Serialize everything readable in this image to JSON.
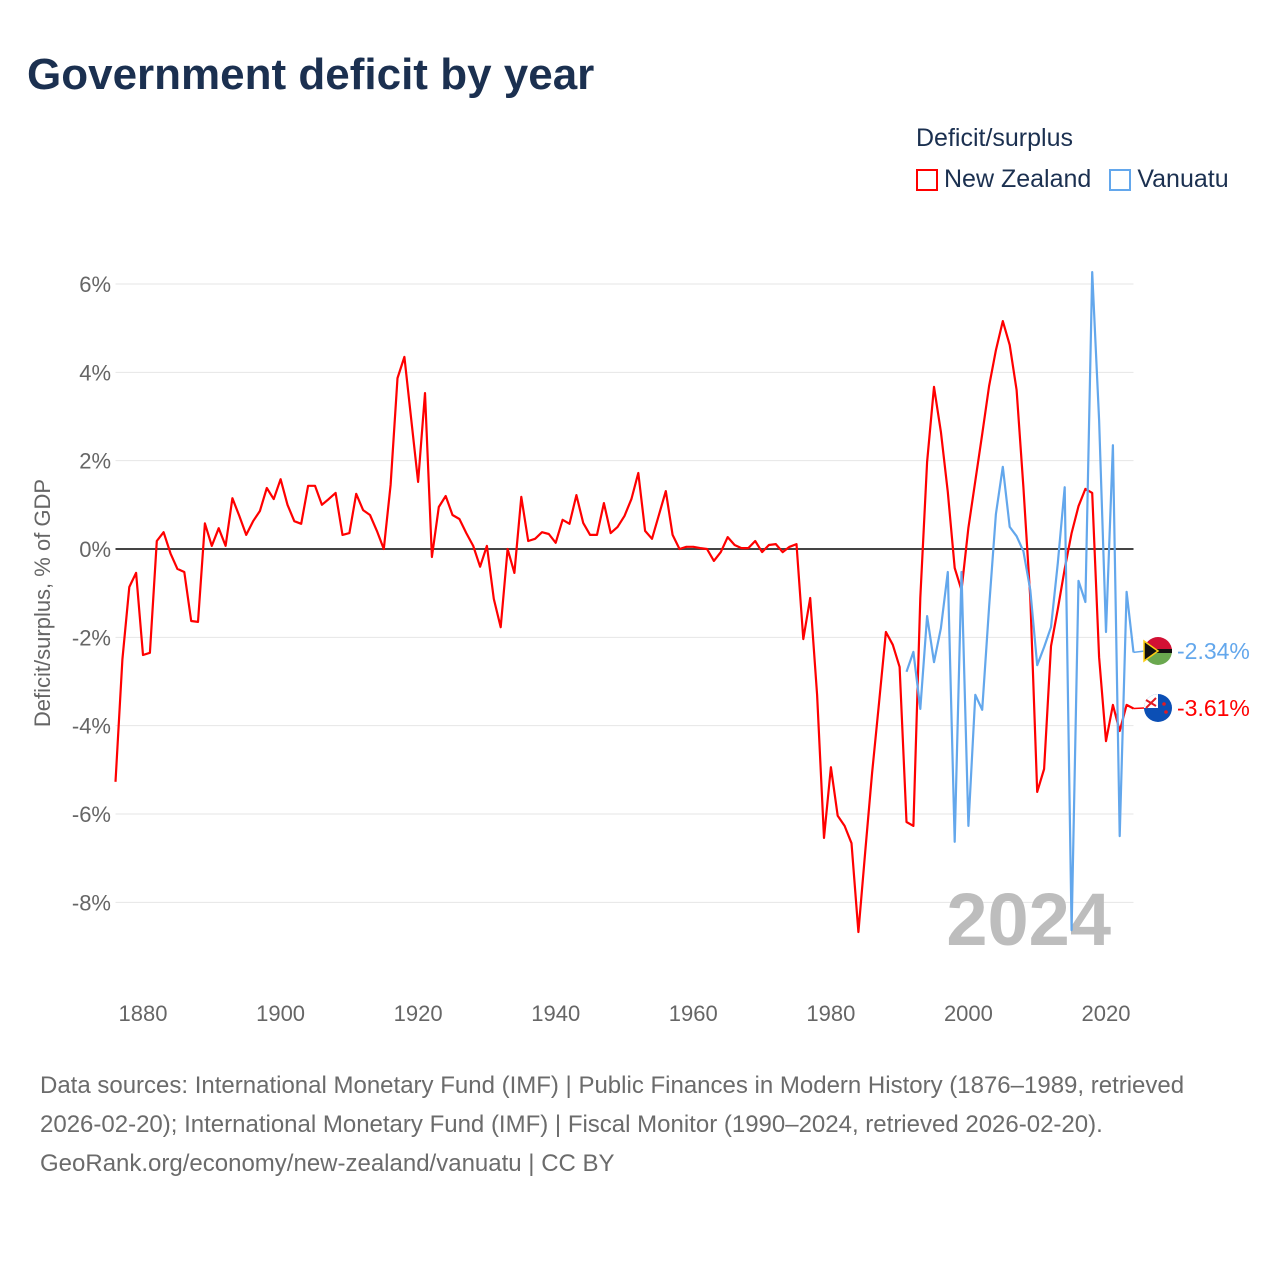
{
  "title": "Government deficit by year",
  "legend": {
    "title": "Deficit/surplus",
    "items": [
      {
        "name": "New Zealand",
        "color": "#ff0000"
      },
      {
        "name": "Vanuatu",
        "color": "#63a7ec"
      }
    ]
  },
  "footer": {
    "sources": "Data sources: International Monetary Fund (IMF) | Public Finances in Modern History (1876–1989, retrieved 2026-02-20); International Monetary Fund (IMF) | Fiscal Monitor (1990–2024, retrieved 2026-02-20).",
    "credit": "GeoRank.org/economy/new-zealand/vanuatu | CC BY"
  },
  "chart_data": {
    "type": "line",
    "title": "Government deficit by year",
    "ylabel": "Deficit/surplus, % of GDP",
    "xlabel": "",
    "xlim": [
      1876,
      2024
    ],
    "ylim": [
      -10,
      6.3
    ],
    "yticks": [
      6,
      4,
      2,
      0,
      -2,
      -4,
      -6,
      -8
    ],
    "ytick_labels": [
      "6%",
      "4%",
      "2%",
      "0%",
      "-2%",
      "-4%",
      "-6%",
      "-8%"
    ],
    "xticks": [
      1880,
      1900,
      1920,
      1940,
      1960,
      1980,
      2000,
      2020
    ],
    "xtick_labels": [
      "1880",
      "1900",
      "1920",
      "1940",
      "1960",
      "1980",
      "2000",
      "2020"
    ],
    "year_label": "2024",
    "grid": true,
    "legend_position": "top-right",
    "series": [
      {
        "name": "New Zealand",
        "color": "#ff0000",
        "start_year": 1876,
        "end_label": "-3.61%",
        "values": [
          -5.27,
          -2.5,
          -0.86,
          -0.54,
          -2.4,
          -2.35,
          0.18,
          0.38,
          -0.1,
          -0.45,
          -0.52,
          -1.63,
          -1.65,
          0.58,
          0.07,
          0.47,
          0.07,
          1.15,
          0.75,
          0.32,
          0.63,
          0.86,
          1.38,
          1.13,
          1.58,
          1.0,
          0.63,
          0.57,
          1.43,
          1.43,
          1.0,
          1.13,
          1.27,
          0.32,
          0.36,
          1.25,
          0.88,
          0.77,
          0.41,
          0.0,
          1.45,
          3.87,
          4.35,
          2.92,
          1.52,
          3.53,
          -0.18,
          0.95,
          1.2,
          0.77,
          0.68,
          0.36,
          0.07,
          -0.4,
          0.07,
          -1.13,
          -1.77,
          0.0,
          -0.54,
          1.18,
          0.18,
          0.23,
          0.38,
          0.34,
          0.14,
          0.66,
          0.57,
          1.22,
          0.59,
          0.32,
          0.32,
          1.04,
          0.36,
          0.5,
          0.75,
          1.13,
          1.72,
          0.41,
          0.23,
          0.77,
          1.31,
          0.32,
          0.0,
          0.05,
          0.05,
          0.02,
          0.0,
          -0.27,
          -0.07,
          0.27,
          0.09,
          0.02,
          0.02,
          0.18,
          -0.07,
          0.09,
          0.11,
          -0.07,
          0.05,
          0.11,
          -2.04,
          -1.11,
          -3.3,
          -6.54,
          -4.94,
          -6.04,
          -6.27,
          -6.66,
          -8.67,
          -6.86,
          -5.07,
          -3.49,
          -1.88,
          -2.17,
          -2.67,
          -6.18,
          -6.27,
          -1.11,
          1.97,
          3.67,
          2.65,
          1.29,
          -0.43,
          -0.93,
          0.48,
          1.54,
          2.6,
          3.69,
          4.5,
          5.16,
          4.62,
          3.6,
          1.4,
          -1.11,
          -5.5,
          -4.98,
          -2.2,
          -1.36,
          -0.45,
          0.36,
          0.97,
          1.36,
          1.27,
          -2.45,
          -4.35,
          -3.53,
          -4.12,
          -3.53,
          -3.61
        ]
      },
      {
        "name": "Vanuatu",
        "color": "#63a7ec",
        "start_year": 1991,
        "end_label": "-2.34%",
        "values": [
          -2.78,
          -2.33,
          -3.62,
          -1.52,
          -2.56,
          -1.79,
          -0.52,
          -6.63,
          -0.52,
          -6.27,
          -3.3,
          -3.64,
          -1.31,
          0.79,
          1.86,
          0.5,
          0.29,
          -0.05,
          -0.93,
          -2.63,
          -2.22,
          -1.77,
          -0.32,
          1.4,
          -8.63,
          -0.72,
          -1.2,
          6.27,
          2.92,
          -1.88,
          2.35,
          -6.5,
          -0.97,
          -2.34
        ]
      }
    ]
  }
}
